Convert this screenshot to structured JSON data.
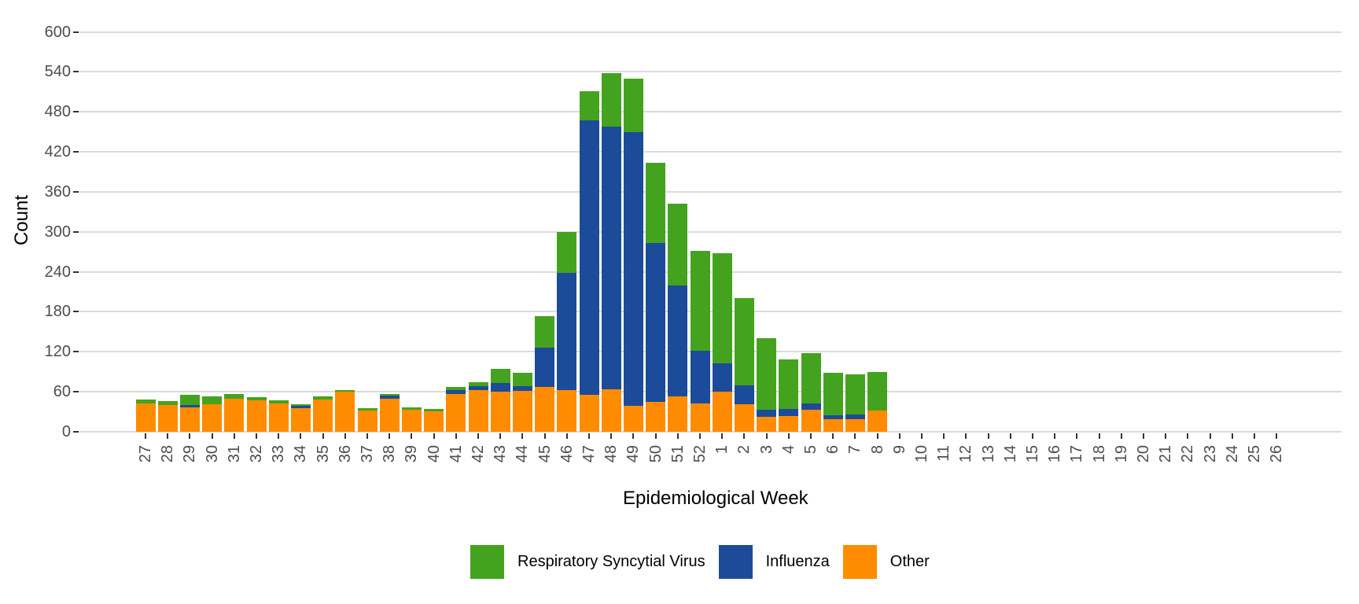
{
  "chart_data": {
    "type": "bar",
    "stacked": true,
    "xlabel": "Epidemiological Week",
    "ylabel": "Count",
    "ylim": [
      0,
      600
    ],
    "yticks": [
      0,
      60,
      120,
      180,
      240,
      300,
      360,
      420,
      480,
      540,
      600
    ],
    "grid": "horizontal-major",
    "legend_position": "bottom",
    "gridline_color": "#DBDBDB",
    "axis_text_color": "#4D4D4D",
    "axis_tick_color": "#333333",
    "background_color": "#FFFFFF",
    "categories": [
      "27",
      "28",
      "29",
      "30",
      "31",
      "32",
      "33",
      "34",
      "35",
      "36",
      "37",
      "38",
      "39",
      "40",
      "41",
      "42",
      "43",
      "44",
      "45",
      "46",
      "47",
      "48",
      "49",
      "50",
      "51",
      "52",
      "1",
      "2",
      "3",
      "4",
      "5",
      "6",
      "7",
      "8",
      "9",
      "10",
      "11",
      "12",
      "13",
      "14",
      "15",
      "16",
      "17",
      "18",
      "19",
      "20",
      "21",
      "22",
      "23",
      "24",
      "25",
      "26"
    ],
    "stack_bottom_to_top": [
      "Other",
      "Influenza",
      "Respiratory Syncytial Virus"
    ],
    "series": [
      {
        "name": "Respiratory Syncytial Virus",
        "color": "#44A31E",
        "values": [
          6,
          6,
          15,
          12,
          8,
          5,
          4,
          2,
          5,
          3,
          4,
          3,
          4,
          3,
          5,
          6,
          22,
          20,
          47,
          62,
          44,
          80,
          81,
          121,
          122,
          149,
          165,
          131,
          107,
          75,
          75,
          63,
          60,
          58,
          0,
          0,
          0,
          0,
          0,
          0,
          0,
          0,
          0,
          0,
          0,
          0,
          0,
          0,
          0,
          0,
          0,
          0
        ]
      },
      {
        "name": "Influenza",
        "color": "#1C4B99",
        "values": [
          0,
          0,
          3,
          0,
          0,
          0,
          0,
          4,
          0,
          0,
          0,
          4,
          0,
          0,
          5,
          5,
          13,
          7,
          59,
          176,
          412,
          394,
          410,
          238,
          167,
          80,
          43,
          29,
          10,
          10,
          10,
          6,
          7,
          0,
          0,
          0,
          0,
          0,
          0,
          0,
          0,
          0,
          0,
          0,
          0,
          0,
          0,
          0,
          0,
          0,
          0,
          0
        ]
      },
      {
        "name": "Other",
        "color": "#FF8C00",
        "values": [
          42,
          40,
          37,
          41,
          49,
          47,
          43,
          35,
          48,
          60,
          32,
          50,
          33,
          31,
          57,
          63,
          60,
          61,
          67,
          62,
          55,
          64,
          39,
          45,
          53,
          42,
          60,
          41,
          23,
          24,
          33,
          19,
          19,
          32,
          0,
          0,
          0,
          0,
          0,
          0,
          0,
          0,
          0,
          0,
          0,
          0,
          0,
          0,
          0,
          0,
          0,
          0
        ]
      }
    ]
  }
}
